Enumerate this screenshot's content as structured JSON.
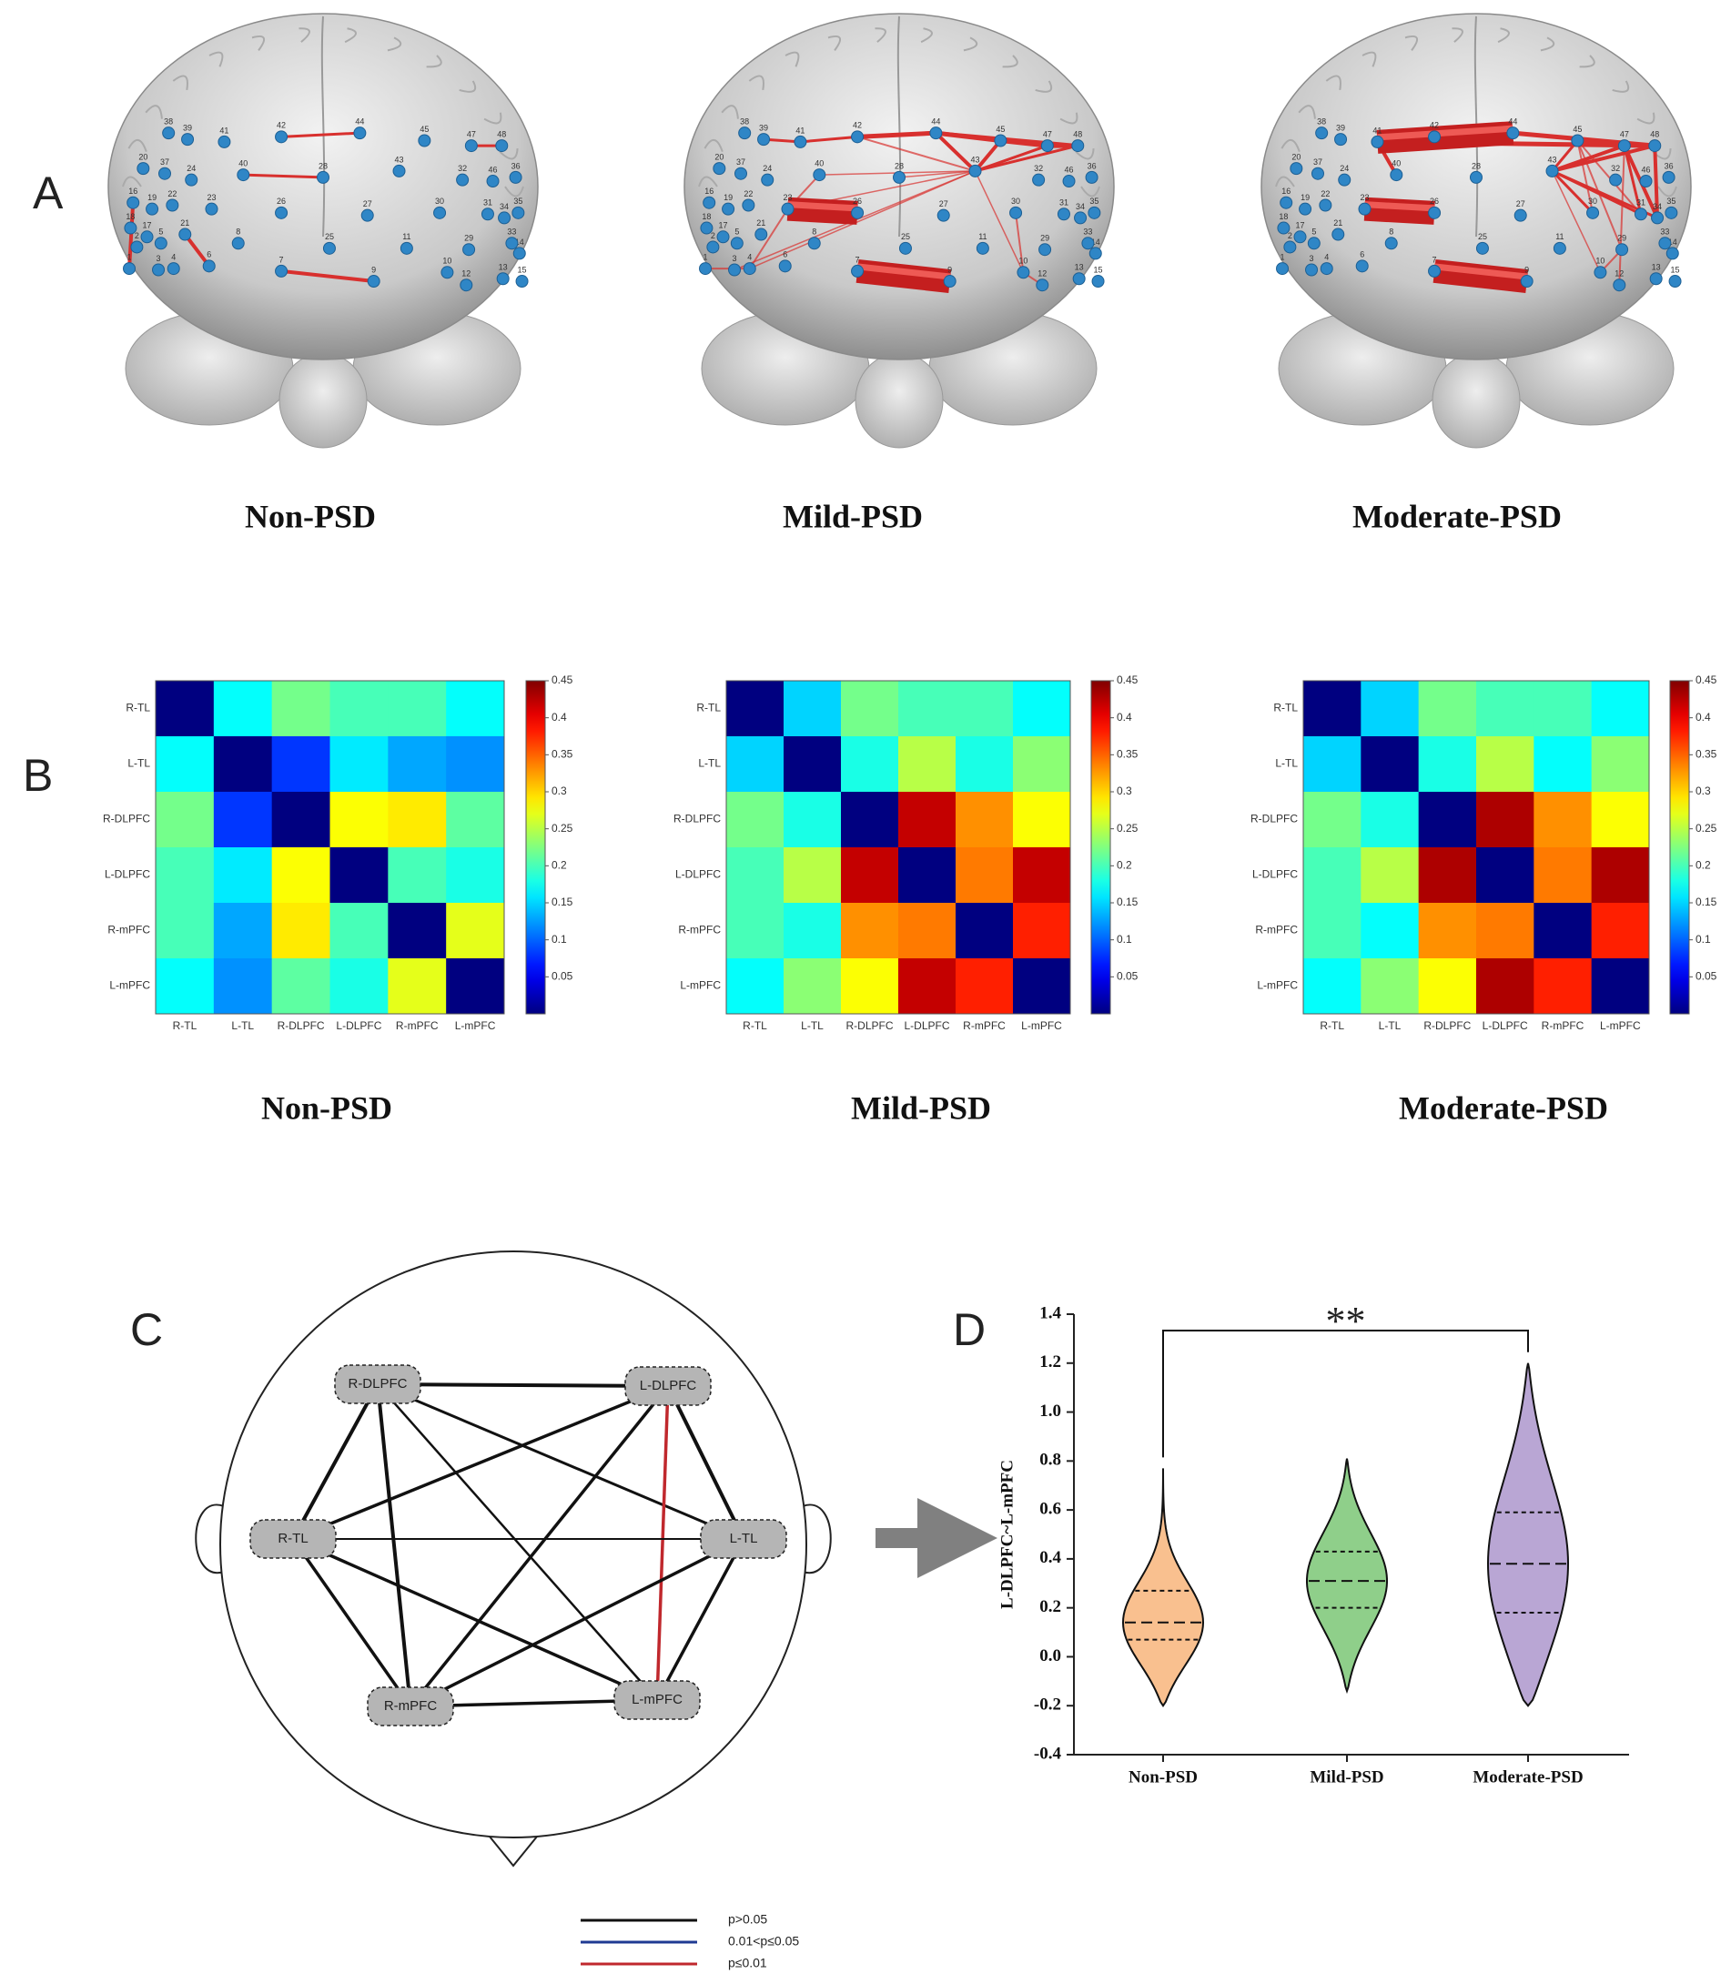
{
  "panel_labels": [
    "A",
    "B",
    "C",
    "D"
  ],
  "panel_a": {
    "channels": [
      1,
      2,
      3,
      4,
      5,
      6,
      7,
      8,
      9,
      10,
      11,
      12,
      13,
      14,
      15,
      16,
      17,
      18,
      19,
      20,
      21,
      22,
      23,
      24,
      25,
      26,
      27,
      28,
      29,
      30,
      31,
      32,
      33,
      34,
      35,
      36,
      37,
      38,
      39,
      40,
      41,
      42,
      43,
      44,
      45,
      46,
      47,
      48
    ],
    "captions": [
      "Non-PSD",
      "Mild-PSD",
      "Moderate-PSD"
    ]
  },
  "panel_c": {
    "nodes": [
      "R-DLPFC",
      "L-DLPFC",
      "R-TL",
      "L-TL",
      "R-mPFC",
      "L-mPFC"
    ],
    "edges": [
      [
        0,
        1,
        0
      ],
      [
        0,
        2,
        0
      ],
      [
        0,
        3,
        0
      ],
      [
        0,
        4,
        0
      ],
      [
        0,
        5,
        0
      ],
      [
        1,
        2,
        0
      ],
      [
        1,
        3,
        0
      ],
      [
        1,
        4,
        0
      ],
      [
        1,
        5,
        2
      ],
      [
        2,
        3,
        0
      ],
      [
        2,
        4,
        0
      ],
      [
        2,
        5,
        0
      ],
      [
        3,
        4,
        0
      ],
      [
        3,
        5,
        0
      ],
      [
        4,
        5,
        0
      ]
    ],
    "legend": [
      {
        "label": "p>0.05",
        "color": "#111111"
      },
      {
        "label": "0.01<p≤0.05",
        "color": "#1f3a93"
      },
      {
        "label": "p≤0.01",
        "color": "#c0282d"
      }
    ]
  },
  "chart_data": [
    {
      "type": "heatmap",
      "caption": "Non-PSD",
      "colormap": "jet",
      "categories": [
        "R-TL",
        "L-TL",
        "R-DLPFC",
        "L-DLPFC",
        "R-mPFC",
        "L-mPFC"
      ],
      "values": [
        [
          0,
          0.17,
          0.22,
          0.2,
          0.2,
          0.17
        ],
        [
          0.17,
          0,
          0.08,
          0.16,
          0.13,
          0.12
        ],
        [
          0.22,
          0.08,
          0,
          0.28,
          0.29,
          0.21
        ],
        [
          0.2,
          0.16,
          0.28,
          0,
          0.2,
          0.18
        ],
        [
          0.2,
          0.13,
          0.29,
          0.2,
          0,
          0.27
        ],
        [
          0.17,
          0.12,
          0.21,
          0.18,
          0.27,
          0
        ]
      ],
      "clim": [
        0,
        0.45
      ],
      "cticks": [
        0.05,
        0.1,
        0.15,
        0.2,
        0.25,
        0.3,
        0.35,
        0.4,
        0.45
      ]
    },
    {
      "type": "heatmap",
      "caption": "Mild-PSD",
      "colormap": "jet",
      "categories": [
        "R-TL",
        "L-TL",
        "R-DLPFC",
        "L-DLPFC",
        "R-mPFC",
        "L-mPFC"
      ],
      "values": [
        [
          0,
          0.15,
          0.22,
          0.2,
          0.2,
          0.17
        ],
        [
          0.15,
          0,
          0.18,
          0.25,
          0.18,
          0.23
        ],
        [
          0.22,
          0.18,
          0,
          0.42,
          0.33,
          0.28
        ],
        [
          0.2,
          0.25,
          0.42,
          0,
          0.34,
          0.42
        ],
        [
          0.2,
          0.18,
          0.33,
          0.34,
          0,
          0.38
        ],
        [
          0.17,
          0.23,
          0.28,
          0.42,
          0.38,
          0
        ]
      ],
      "clim": [
        0,
        0.45
      ],
      "cticks": [
        0.05,
        0.1,
        0.15,
        0.2,
        0.25,
        0.3,
        0.35,
        0.4,
        0.45
      ]
    },
    {
      "type": "heatmap",
      "caption": "Moderate-PSD",
      "colormap": "jet",
      "categories": [
        "R-TL",
        "L-TL",
        "R-DLPFC",
        "L-DLPFC",
        "R-mPFC",
        "L-mPFC"
      ],
      "values": [
        [
          0,
          0.15,
          0.22,
          0.2,
          0.2,
          0.17
        ],
        [
          0.15,
          0,
          0.18,
          0.25,
          0.17,
          0.23
        ],
        [
          0.22,
          0.18,
          0,
          0.43,
          0.33,
          0.28
        ],
        [
          0.2,
          0.25,
          0.43,
          0,
          0.34,
          0.43
        ],
        [
          0.2,
          0.17,
          0.33,
          0.34,
          0,
          0.38
        ],
        [
          0.17,
          0.23,
          0.28,
          0.43,
          0.38,
          0
        ]
      ],
      "clim": [
        0,
        0.45
      ],
      "cticks": [
        0.05,
        0.1,
        0.15,
        0.2,
        0.25,
        0.3,
        0.35,
        0.4,
        0.45
      ]
    },
    {
      "type": "violin",
      "ylabel": "L-DLPFC~L-mPFC",
      "categories": [
        "Non-PSD",
        "Mild-PSD",
        "Moderate-PSD"
      ],
      "colors": [
        "#f9c08f",
        "#8fcf8a",
        "#b9a6d4"
      ],
      "values": [
        {
          "min": -0.2,
          "q1": 0.07,
          "median": 0.14,
          "q3": 0.27,
          "max": 0.77
        },
        {
          "min": -0.14,
          "q1": 0.2,
          "median": 0.31,
          "q3": 0.43,
          "max": 0.81
        },
        {
          "min": -0.2,
          "q1": 0.18,
          "median": 0.38,
          "q3": 0.59,
          "max": 1.2
        }
      ],
      "ylim": [
        -0.4,
        1.4
      ],
      "yticks": [
        -0.4,
        -0.2,
        {
          "value": 0,
          "label": "0.0"
        },
        0.2,
        0.4,
        0.6,
        0.8,
        {
          "value": 1,
          "label": "1.0"
        },
        1.2,
        1.4
      ],
      "annotations": [
        {
          "text": "**",
          "from": 0,
          "to": 2
        }
      ]
    }
  ]
}
